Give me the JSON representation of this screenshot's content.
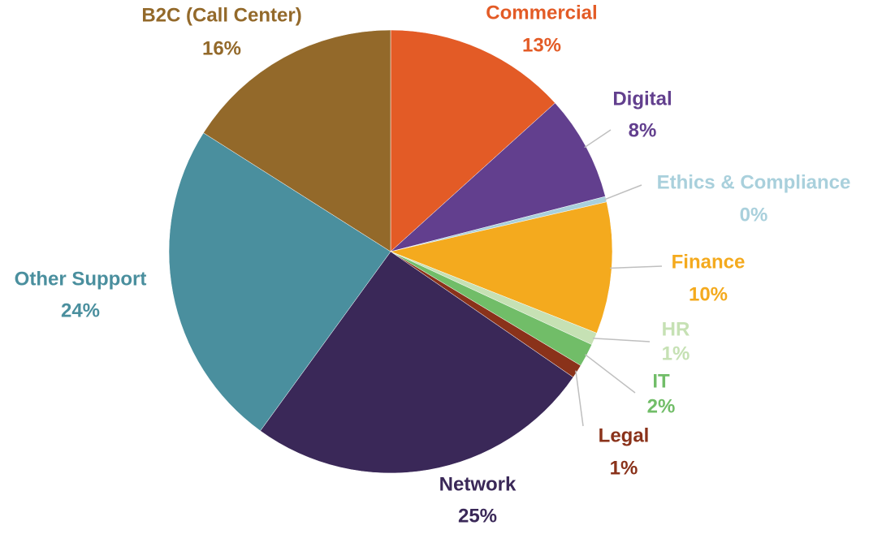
{
  "chart_data": {
    "type": "pie",
    "categories": [
      "Commercial",
      "Digital",
      "Ethics & Compliance",
      "Finance",
      "HR",
      "IT",
      "Legal",
      "Network",
      "Other Support",
      "B2C (Call Center)"
    ],
    "values": [
      13.3,
      7.7,
      0.4,
      9.6,
      0.9,
      1.7,
      1.0,
      25.4,
      24.0,
      16.0
    ],
    "value_labels": [
      "13%",
      "8%",
      "0%",
      "10%",
      "1%",
      "2%",
      "1%",
      "25%",
      "24%",
      "16%"
    ],
    "colors": [
      "#e35b26",
      "#623f8e",
      "#a9d0dc",
      "#f4aa1e",
      "#c6e1b4",
      "#71bd68",
      "#8a321a",
      "#3a2858",
      "#4a8f9e",
      "#93692a"
    ],
    "label_colors": [
      "#e35b26",
      "#623f8e",
      "#a9d0dc",
      "#f4aa1e",
      "#c6e1b4",
      "#71bd68",
      "#8a321a",
      "#3a2858",
      "#4a8f9e",
      "#93692a"
    ]
  }
}
